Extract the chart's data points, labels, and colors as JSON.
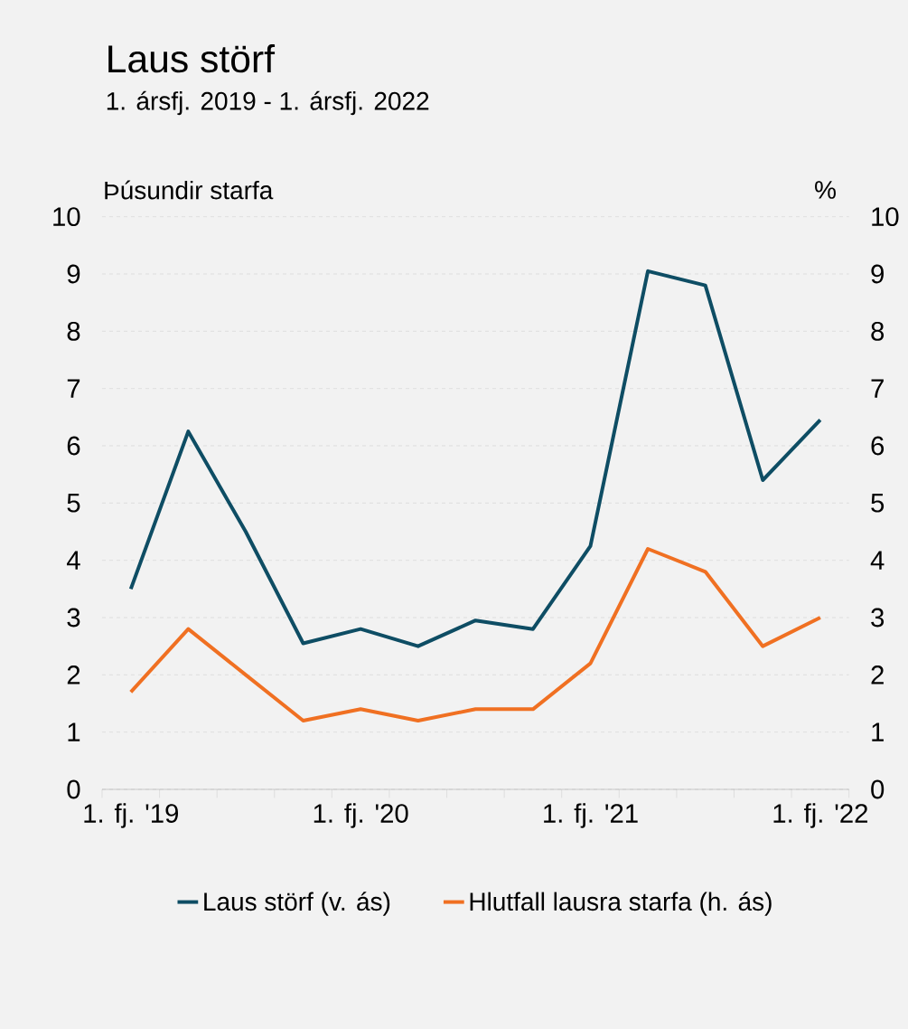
{
  "chart_data": {
    "type": "line",
    "title": "Laus störf",
    "subtitle": "1. ársfj. 2019 - 1. ársfj. 2022",
    "ylabel": "Þúsundir starfa",
    "y2label": "%",
    "categories": [
      "1. fj. '19",
      null,
      null,
      null,
      "1. fj. '20",
      null,
      null,
      null,
      "1. fj. '21",
      null,
      null,
      null,
      "1. fj. '22"
    ],
    "series": [
      {
        "name": "Laus störf (v. ás)",
        "color": "#0e4d64",
        "values": [
          3.5,
          6.25,
          4.5,
          2.55,
          2.8,
          2.5,
          2.95,
          2.8,
          4.25,
          9.05,
          8.8,
          5.4,
          6.45
        ]
      },
      {
        "name": "Hlutfall lausra starfa (h. ás)",
        "color": "#f07022",
        "axis": "y2",
        "values": [
          1.7,
          2.8,
          2.0,
          1.2,
          1.4,
          1.2,
          1.4,
          1.4,
          2.2,
          4.2,
          3.8,
          2.5,
          3.0
        ]
      }
    ],
    "ylim": [
      0,
      10
    ],
    "yticks": [
      0,
      1,
      2,
      3,
      4,
      5,
      6,
      7,
      8,
      9,
      10
    ],
    "y2lim": [
      0,
      10
    ],
    "y2ticks": [
      0,
      1,
      2,
      3,
      4,
      5,
      6,
      7,
      8,
      9,
      10
    ],
    "grid": "y",
    "legend": "bottom"
  }
}
